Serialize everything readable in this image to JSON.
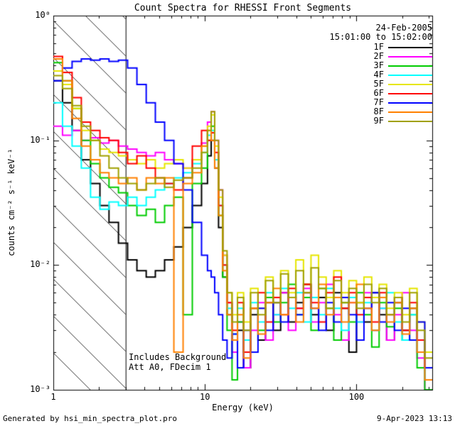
{
  "title": "Count Spectra for RHESSI Front Segments",
  "legend": {
    "date": "24-Feb-2005",
    "interval": "15:01:00 to 15:02:00"
  },
  "annotations": {
    "background": "Includes Background",
    "attenuator": "Att A0, FDecim 1"
  },
  "footer": {
    "left": "Generated by hsi_min_spectra_plot.pro",
    "right": "9-Apr-2023 13:13"
  },
  "chart_data": {
    "type": "line",
    "subtype": "step-spectrum",
    "title": "Count Spectra for RHESSI Front Segments",
    "xlabel": "Energy (keV)",
    "ylabel": "counts cm⁻² s⁻¹ keV⁻¹",
    "x_scale": "log",
    "y_scale": "log",
    "xlim": [
      1,
      316
    ],
    "ylim": [
      0.001,
      1
    ],
    "x_ticks": [
      {
        "label": "1",
        "value": 1
      },
      {
        "label": "10",
        "value": 10
      },
      {
        "label": "100",
        "value": 100
      }
    ],
    "y_ticks": [
      {
        "label": "10⁰",
        "value": 1
      },
      {
        "label": "10⁻¹",
        "value": 0.1
      },
      {
        "label": "10⁻²",
        "value": 0.01
      },
      {
        "label": "10⁻³",
        "value": 0.001
      }
    ],
    "hatch_region_kev": [
      1,
      3
    ],
    "energy_bin_edges_kev": [
      1.0,
      1.15,
      1.33,
      1.53,
      1.76,
      2.03,
      2.33,
      2.69,
      3.09,
      3.56,
      4.1,
      4.71,
      5.42,
      6.24,
      7.18,
      8.26,
      9.5,
      10.4,
      11.0,
      11.6,
      12.3,
      13.1,
      14.0,
      15.1,
      16.4,
      18.0,
      20.0,
      22.4,
      25.1,
      28.2,
      31.6,
      35.5,
      39.8,
      44.7,
      50.1,
      56.2,
      63.1,
      70.8,
      79.4,
      89.1,
      100,
      112,
      126,
      141,
      158,
      178,
      200,
      224,
      251,
      282,
      316
    ],
    "series": [
      {
        "name": "1F",
        "color": "#000000",
        "values": [
          0.3,
          0.2,
          0.12,
          0.07,
          0.045,
          0.03,
          0.022,
          0.015,
          0.011,
          0.009,
          0.008,
          0.009,
          0.011,
          0.014,
          0.02,
          0.03,
          0.045,
          0.075,
          0.1,
          0.06,
          0.02,
          0.008,
          0.004,
          0.0025,
          0.003,
          0.0015,
          0.004,
          0.0025,
          0.005,
          0.003,
          0.006,
          0.0035,
          0.005,
          0.007,
          0.004,
          0.0055,
          0.003,
          0.006,
          0.0045,
          0.002,
          0.005,
          0.0035,
          0.006,
          0.004,
          0.0025,
          0.005,
          0.003,
          0.0045,
          0.002,
          0.0012
        ]
      },
      {
        "name": "2F",
        "color": "#ff00ff",
        "values": [
          0.13,
          0.11,
          0.12,
          0.1,
          0.105,
          0.095,
          0.1,
          0.09,
          0.085,
          0.08,
          0.075,
          0.08,
          0.07,
          0.065,
          0.06,
          0.07,
          0.095,
          0.14,
          0.17,
          0.1,
          0.04,
          0.012,
          0.005,
          0.002,
          0.0035,
          0.0015,
          0.003,
          0.005,
          0.0025,
          0.004,
          0.006,
          0.003,
          0.0045,
          0.0065,
          0.0035,
          0.005,
          0.007,
          0.004,
          0.0025,
          0.005,
          0.0035,
          0.006,
          0.003,
          0.0045,
          0.0025,
          0.004,
          0.006,
          0.003,
          0.0018,
          0.001
        ]
      },
      {
        "name": "3F",
        "color": "#00cc00",
        "values": [
          0.42,
          0.3,
          0.18,
          0.1,
          0.065,
          0.05,
          0.042,
          0.038,
          0.03,
          0.025,
          0.028,
          0.022,
          0.03,
          0.035,
          0.004,
          0.045,
          0.06,
          0.1,
          0.13,
          0.07,
          0.025,
          0.008,
          0.003,
          0.0012,
          0.0035,
          0.002,
          0.0045,
          0.003,
          0.0055,
          0.0035,
          0.005,
          0.007,
          0.004,
          0.0055,
          0.003,
          0.0065,
          0.0045,
          0.0025,
          0.005,
          0.0035,
          0.006,
          0.004,
          0.0022,
          0.005,
          0.0032,
          0.0045,
          0.0025,
          0.004,
          0.0015,
          0.001
        ]
      },
      {
        "name": "4F",
        "color": "#00ffff",
        "values": [
          0.2,
          0.13,
          0.09,
          0.06,
          0.035,
          0.028,
          0.032,
          0.03,
          0.035,
          0.03,
          0.035,
          0.04,
          0.045,
          0.05,
          0.055,
          0.065,
          0.08,
          0.11,
          0.12,
          0.07,
          0.03,
          0.01,
          0.0045,
          0.0028,
          0.0045,
          0.0025,
          0.005,
          0.0035,
          0.006,
          0.004,
          0.0065,
          0.0045,
          0.006,
          0.0035,
          0.0055,
          0.004,
          0.0065,
          0.0045,
          0.003,
          0.0055,
          0.0035,
          0.005,
          0.003,
          0.0045,
          0.006,
          0.0035,
          0.0025,
          0.004,
          0.002,
          0.0012
        ]
      },
      {
        "name": "5F",
        "color": "#e6e600",
        "values": [
          0.36,
          0.28,
          0.18,
          0.12,
          0.1,
          0.085,
          0.08,
          0.075,
          0.07,
          0.065,
          0.07,
          0.06,
          0.065,
          0.07,
          0.06,
          0.07,
          0.09,
          0.13,
          0.16,
          0.09,
          0.035,
          0.012,
          0.006,
          0.004,
          0.006,
          0.0035,
          0.0065,
          0.0045,
          0.008,
          0.005,
          0.009,
          0.006,
          0.011,
          0.007,
          0.012,
          0.008,
          0.0055,
          0.009,
          0.006,
          0.0075,
          0.005,
          0.008,
          0.0055,
          0.007,
          0.0045,
          0.006,
          0.004,
          0.0065,
          0.0035,
          0.002
        ]
      },
      {
        "name": "6F",
        "color": "#ff0000",
        "values": [
          0.47,
          0.35,
          0.22,
          0.14,
          0.12,
          0.105,
          0.1,
          0.08,
          0.065,
          0.075,
          0.06,
          0.05,
          0.045,
          0.04,
          0.05,
          0.09,
          0.12,
          0.1,
          0.115,
          0.08,
          0.03,
          0.01,
          0.005,
          0.003,
          0.005,
          0.002,
          0.0045,
          0.006,
          0.0035,
          0.0055,
          0.004,
          0.0065,
          0.0045,
          0.007,
          0.005,
          0.0035,
          0.006,
          0.008,
          0.0045,
          0.006,
          0.004,
          0.0055,
          0.0035,
          0.006,
          0.004,
          0.0055,
          0.003,
          0.005,
          0.0025,
          0.0015
        ]
      },
      {
        "name": "7F",
        "color": "#0000ff",
        "values": [
          0.3,
          0.38,
          0.43,
          0.45,
          0.44,
          0.45,
          0.43,
          0.44,
          0.38,
          0.28,
          0.2,
          0.14,
          0.1,
          0.065,
          0.04,
          0.022,
          0.012,
          0.009,
          0.008,
          0.006,
          0.004,
          0.0025,
          0.0018,
          0.0028,
          0.0015,
          0.003,
          0.002,
          0.0045,
          0.003,
          0.005,
          0.0035,
          0.0055,
          0.004,
          0.006,
          0.0045,
          0.003,
          0.005,
          0.0035,
          0.0055,
          0.004,
          0.0025,
          0.0045,
          0.006,
          0.0035,
          0.005,
          0.003,
          0.0045,
          0.0025,
          0.0035,
          0.0015
        ]
      },
      {
        "name": "8F",
        "color": "#ff8000",
        "values": [
          0.45,
          0.3,
          0.15,
          0.09,
          0.07,
          0.055,
          0.05,
          0.045,
          0.05,
          0.04,
          0.05,
          0.045,
          0.05,
          0.002,
          0.045,
          0.055,
          0.09,
          0.12,
          0.1,
          0.06,
          0.025,
          0.009,
          0.004,
          0.0025,
          0.004,
          0.0018,
          0.0045,
          0.0028,
          0.005,
          0.0065,
          0.004,
          0.0055,
          0.0035,
          0.006,
          0.0045,
          0.007,
          0.004,
          0.0055,
          0.0035,
          0.005,
          0.007,
          0.0045,
          0.003,
          0.0055,
          0.0035,
          0.005,
          0.0028,
          0.0045,
          0.002,
          0.0012
        ]
      },
      {
        "name": "9F",
        "color": "#a0a000",
        "values": [
          0.33,
          0.26,
          0.19,
          0.13,
          0.1,
          0.075,
          0.06,
          0.05,
          0.045,
          0.04,
          0.045,
          0.05,
          0.042,
          0.048,
          0.05,
          0.06,
          0.08,
          0.12,
          0.17,
          0.1,
          0.04,
          0.013,
          0.006,
          0.0035,
          0.0055,
          0.003,
          0.006,
          0.004,
          0.0075,
          0.005,
          0.0085,
          0.0055,
          0.009,
          0.006,
          0.0095,
          0.0065,
          0.0045,
          0.0075,
          0.005,
          0.0065,
          0.0045,
          0.007,
          0.005,
          0.0065,
          0.004,
          0.0055,
          0.0035,
          0.006,
          0.003,
          0.0018
        ]
      }
    ]
  }
}
